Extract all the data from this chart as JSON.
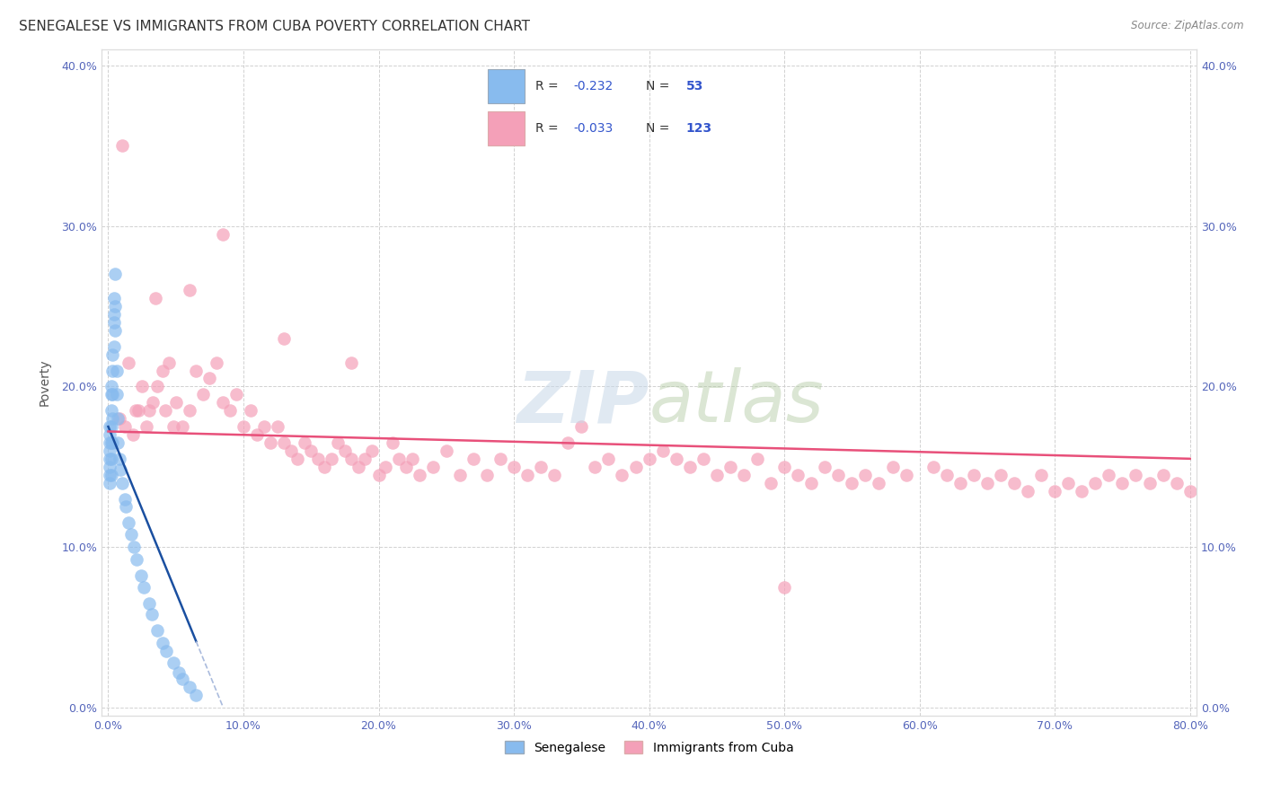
{
  "title": "SENEGALESE VS IMMIGRANTS FROM CUBA POVERTY CORRELATION CHART",
  "source": "Source: ZipAtlas.com",
  "ylabel": "Poverty",
  "xlabel": "",
  "xlim": [
    -0.005,
    0.805
  ],
  "ylim": [
    -0.005,
    0.41
  ],
  "xticks": [
    0.0,
    0.1,
    0.2,
    0.3,
    0.4,
    0.5,
    0.6,
    0.7,
    0.8
  ],
  "yticks": [
    0.0,
    0.1,
    0.2,
    0.3,
    0.4
  ],
  "xticklabels": [
    "0.0%",
    "10.0%",
    "20.0%",
    "30.0%",
    "40.0%",
    "50.0%",
    "60.0%",
    "70.0%",
    "80.0%"
  ],
  "yticklabels": [
    "0.0%",
    "10.0%",
    "20.0%",
    "30.0%",
    "40.0%"
  ],
  "senegalese_color": "#88bbee",
  "cuba_color": "#f4a0b8",
  "trendline_blue_solid": "#1a4fa0",
  "trendline_blue_dash": "#aabbdd",
  "trendline_pink": "#e8507a",
  "legend_label1": "Senegalese",
  "legend_label2": "Immigrants from Cuba",
  "title_fontsize": 11,
  "axis_label_fontsize": 10,
  "tick_fontsize": 9,
  "senegalese_x": [
    0.001,
    0.001,
    0.001,
    0.001,
    0.001,
    0.001,
    0.001,
    0.001,
    0.002,
    0.002,
    0.002,
    0.002,
    0.002,
    0.002,
    0.002,
    0.003,
    0.003,
    0.003,
    0.003,
    0.003,
    0.004,
    0.004,
    0.004,
    0.004,
    0.005,
    0.005,
    0.005,
    0.006,
    0.006,
    0.007,
    0.007,
    0.008,
    0.009,
    0.01,
    0.012,
    0.013,
    0.015,
    0.017,
    0.019,
    0.021,
    0.024,
    0.026,
    0.03,
    0.032,
    0.036,
    0.04,
    0.043,
    0.048,
    0.052,
    0.055,
    0.06,
    0.065
  ],
  "senegalese_y": [
    0.175,
    0.17,
    0.165,
    0.16,
    0.155,
    0.15,
    0.145,
    0.14,
    0.2,
    0.195,
    0.185,
    0.175,
    0.165,
    0.155,
    0.145,
    0.22,
    0.21,
    0.195,
    0.18,
    0.165,
    0.245,
    0.255,
    0.24,
    0.225,
    0.27,
    0.25,
    0.235,
    0.21,
    0.195,
    0.18,
    0.165,
    0.155,
    0.148,
    0.14,
    0.13,
    0.125,
    0.115,
    0.108,
    0.1,
    0.092,
    0.082,
    0.075,
    0.065,
    0.058,
    0.048,
    0.04,
    0.035,
    0.028,
    0.022,
    0.018,
    0.013,
    0.008
  ],
  "cuba_x": [
    0.008,
    0.01,
    0.012,
    0.015,
    0.018,
    0.02,
    0.022,
    0.025,
    0.028,
    0.03,
    0.033,
    0.036,
    0.04,
    0.042,
    0.045,
    0.048,
    0.05,
    0.055,
    0.06,
    0.065,
    0.07,
    0.075,
    0.08,
    0.085,
    0.09,
    0.095,
    0.1,
    0.105,
    0.11,
    0.115,
    0.12,
    0.125,
    0.13,
    0.135,
    0.14,
    0.145,
    0.15,
    0.155,
    0.16,
    0.165,
    0.17,
    0.175,
    0.18,
    0.185,
    0.19,
    0.195,
    0.2,
    0.205,
    0.21,
    0.215,
    0.22,
    0.225,
    0.23,
    0.24,
    0.25,
    0.26,
    0.27,
    0.28,
    0.29,
    0.3,
    0.31,
    0.32,
    0.33,
    0.34,
    0.36,
    0.37,
    0.38,
    0.39,
    0.4,
    0.41,
    0.42,
    0.43,
    0.44,
    0.45,
    0.46,
    0.47,
    0.48,
    0.49,
    0.5,
    0.51,
    0.52,
    0.53,
    0.54,
    0.55,
    0.56,
    0.57,
    0.58,
    0.59,
    0.61,
    0.62,
    0.63,
    0.64,
    0.65,
    0.66,
    0.67,
    0.68,
    0.69,
    0.7,
    0.71,
    0.72,
    0.73,
    0.74,
    0.75,
    0.76,
    0.77,
    0.78,
    0.79,
    0.8,
    0.035,
    0.06,
    0.085,
    0.13,
    0.18,
    0.35,
    0.5
  ],
  "cuba_y": [
    0.18,
    0.35,
    0.175,
    0.215,
    0.17,
    0.185,
    0.185,
    0.2,
    0.175,
    0.185,
    0.19,
    0.2,
    0.21,
    0.185,
    0.215,
    0.175,
    0.19,
    0.175,
    0.185,
    0.21,
    0.195,
    0.205,
    0.215,
    0.19,
    0.185,
    0.195,
    0.175,
    0.185,
    0.17,
    0.175,
    0.165,
    0.175,
    0.165,
    0.16,
    0.155,
    0.165,
    0.16,
    0.155,
    0.15,
    0.155,
    0.165,
    0.16,
    0.155,
    0.15,
    0.155,
    0.16,
    0.145,
    0.15,
    0.165,
    0.155,
    0.15,
    0.155,
    0.145,
    0.15,
    0.16,
    0.145,
    0.155,
    0.145,
    0.155,
    0.15,
    0.145,
    0.15,
    0.145,
    0.165,
    0.15,
    0.155,
    0.145,
    0.15,
    0.155,
    0.16,
    0.155,
    0.15,
    0.155,
    0.145,
    0.15,
    0.145,
    0.155,
    0.14,
    0.15,
    0.145,
    0.14,
    0.15,
    0.145,
    0.14,
    0.145,
    0.14,
    0.15,
    0.145,
    0.15,
    0.145,
    0.14,
    0.145,
    0.14,
    0.145,
    0.14,
    0.135,
    0.145,
    0.135,
    0.14,
    0.135,
    0.14,
    0.145,
    0.14,
    0.145,
    0.14,
    0.145,
    0.14,
    0.135,
    0.255,
    0.26,
    0.295,
    0.23,
    0.215,
    0.175,
    0.075
  ],
  "trendline_sen_x0": 0.0,
  "trendline_sen_y0": 0.175,
  "trendline_sen_x1": 0.085,
  "trendline_sen_y1": 0.0,
  "trendline_cuba_x0": 0.0,
  "trendline_cuba_y0": 0.172,
  "trendline_cuba_x1": 0.8,
  "trendline_cuba_y1": 0.155
}
